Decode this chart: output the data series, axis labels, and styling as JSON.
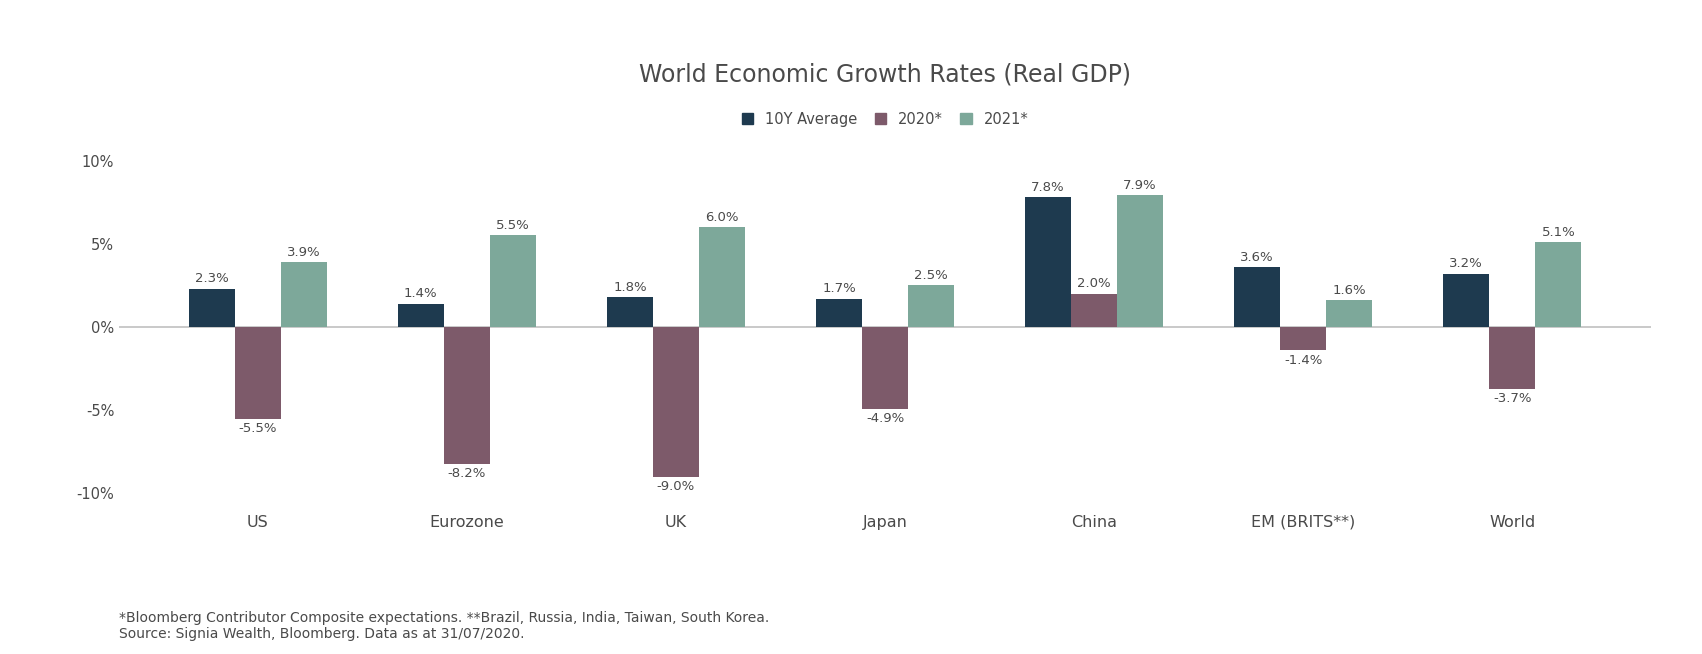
{
  "title": "World Economic Growth Rates (Real GDP)",
  "categories": [
    "US",
    "Eurozone",
    "UK",
    "Japan",
    "China",
    "EM (BRITS**)",
    "World"
  ],
  "series": {
    "10Y Average": [
      2.3,
      1.4,
      1.8,
      1.7,
      7.8,
      3.6,
      3.2
    ],
    "2020*": [
      -5.5,
      -8.2,
      -9.0,
      -4.9,
      2.0,
      -1.4,
      -3.7
    ],
    "2021*": [
      3.9,
      5.5,
      6.0,
      2.5,
      7.9,
      1.6,
      5.1
    ]
  },
  "colors": {
    "10Y Average": "#1e3a4f",
    "2020*": "#7d5a6a",
    "2021*": "#7da89a"
  },
  "ylim": [
    -11,
    11
  ],
  "yticks": [
    -10,
    -5,
    0,
    5,
    10
  ],
  "yticklabels": [
    "-10%",
    "-5%",
    "0%",
    "5%",
    "10%"
  ],
  "legend_labels": [
    "10Y Average",
    "2020*",
    "2021*"
  ],
  "footnote_line1": "*Bloomberg Contributor Composite expectations. **Brazil, Russia, India, Taiwan, South Korea.",
  "footnote_line2": "Source: Signia Wealth, Bloomberg. Data as at 31/07/2020.",
  "bar_width": 0.22,
  "background_color": "#ffffff",
  "title_fontsize": 17,
  "label_fontsize": 9.5,
  "tick_fontsize": 10.5,
  "legend_fontsize": 10.5,
  "footnote_fontsize": 10,
  "text_color": "#4a4a4a",
  "zero_line_color": "#c0c0c0"
}
